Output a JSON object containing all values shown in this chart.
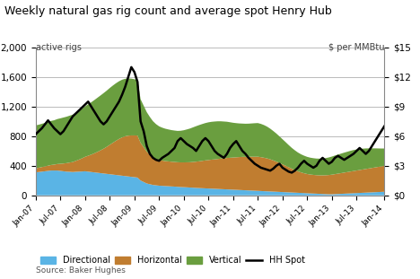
{
  "title": "Weekly natural gas rig count and average spot Henry Hub",
  "ylabel_left": "active rigs",
  "ylabel_right": "$ per MMBtu",
  "ylim_left": [
    0,
    2000
  ],
  "ylim_right": [
    0,
    15
  ],
  "yticks_left": [
    0,
    400,
    800,
    1200,
    1600,
    2000
  ],
  "yticks_right_labels": [
    "$0",
    "$3",
    "$6",
    "$9",
    "$12",
    "$15"
  ],
  "yticks_right_vals": [
    0,
    3,
    6,
    9,
    12,
    15
  ],
  "colors": {
    "directional": "#5ab4e5",
    "horizontal": "#c07d30",
    "vertical": "#6a9e3f",
    "hh_spot": "#000000",
    "background": "#ffffff",
    "grid": "#b0b0b0"
  },
  "legend_labels": [
    "Directional",
    "Horizontal",
    "Vertical",
    "HH Spot"
  ],
  "source": "Source: Baker Hughes",
  "xtick_labels": [
    "Jan-07",
    "Jul-07",
    "Jan-08",
    "Jul-08",
    "Jan-09",
    "Jul-09",
    "Jan-10",
    "Jul-10",
    "Jan-11",
    "Jul-11",
    "Jan-12",
    "Jul-12",
    "Jan-13",
    "Jul-13",
    "Jan-14"
  ],
  "directional": [
    310,
    315,
    320,
    325,
    330,
    335,
    335,
    335,
    330,
    325,
    320,
    318,
    315,
    318,
    320,
    322,
    325,
    320,
    315,
    310,
    305,
    300,
    295,
    290,
    285,
    280,
    275,
    270,
    265,
    260,
    255,
    250,
    245,
    240,
    200,
    180,
    160,
    150,
    140,
    135,
    130,
    128,
    125,
    123,
    120,
    118,
    115,
    112,
    110,
    108,
    105,
    103,
    100,
    98,
    96,
    94,
    92,
    90,
    88,
    86,
    84,
    82,
    80,
    78,
    76,
    74,
    72,
    70,
    68,
    66,
    64,
    62,
    60,
    58,
    56,
    54,
    52,
    50,
    48,
    46,
    44,
    42,
    40,
    38,
    36,
    34,
    32,
    30,
    28,
    26,
    24,
    22,
    20,
    18,
    16,
    14,
    14,
    16,
    18,
    20,
    22,
    24,
    26,
    28,
    30,
    32,
    34,
    36,
    38,
    40,
    42,
    44,
    46,
    48,
    50,
    52
  ],
  "horizontal": [
    55,
    58,
    62,
    66,
    70,
    75,
    80,
    88,
    96,
    105,
    115,
    125,
    135,
    148,
    162,
    178,
    195,
    215,
    235,
    258,
    282,
    308,
    335,
    365,
    398,
    430,
    462,
    492,
    518,
    538,
    552,
    560,
    565,
    568,
    510,
    470,
    430,
    400,
    375,
    358,
    348,
    342,
    338,
    336,
    334,
    333,
    332,
    333,
    335,
    338,
    342,
    348,
    355,
    362,
    370,
    378,
    385,
    392,
    398,
    405,
    412,
    418,
    425,
    430,
    435,
    440,
    445,
    450,
    452,
    455,
    458,
    460,
    462,
    458,
    452,
    445,
    435,
    422,
    408,
    392,
    375,
    358,
    340,
    322,
    305,
    290,
    278,
    268,
    260,
    255,
    252,
    250,
    250,
    252,
    255,
    260,
    265,
    270,
    275,
    280,
    285,
    290,
    295,
    300,
    305,
    310,
    315,
    320,
    325,
    330,
    335,
    340,
    345,
    350,
    355,
    360
  ],
  "vertical": [
    580,
    582,
    585,
    588,
    592,
    596,
    600,
    608,
    615,
    622,
    628,
    634,
    640,
    650,
    660,
    670,
    682,
    695,
    708,
    720,
    732,
    742,
    752,
    760,
    768,
    774,
    778,
    780,
    780,
    778,
    774,
    768,
    760,
    750,
    590,
    562,
    535,
    510,
    488,
    470,
    455,
    445,
    438,
    432,
    428,
    425,
    424,
    428,
    435,
    445,
    456,
    468,
    480,
    490,
    498,
    505,
    510,
    512,
    512,
    510,
    505,
    498,
    490,
    480,
    470,
    462,
    455,
    450,
    448,
    448,
    450,
    453,
    455,
    450,
    442,
    430,
    415,
    398,
    380,
    360,
    340,
    320,
    300,
    282,
    268,
    255,
    245,
    238,
    232,
    228,
    226,
    225,
    226,
    228,
    232,
    238,
    245,
    252,
    258,
    264,
    270,
    275,
    280,
    284,
    285,
    284,
    282,
    278,
    272,
    265,
    258,
    250,
    242,
    235,
    228,
    222
  ],
  "hh_spot": [
    6.2,
    6.5,
    6.8,
    7.2,
    7.6,
    7.2,
    6.8,
    6.5,
    6.2,
    6.5,
    7.0,
    7.5,
    8.0,
    8.3,
    8.6,
    8.9,
    9.2,
    9.5,
    9.0,
    8.5,
    8.0,
    7.5,
    7.2,
    7.5,
    8.0,
    8.5,
    9.0,
    9.5,
    10.2,
    11.0,
    12.0,
    13.0,
    12.5,
    11.5,
    7.5,
    6.5,
    5.0,
    4.2,
    3.8,
    3.6,
    3.5,
    3.8,
    4.0,
    4.2,
    4.5,
    4.8,
    5.5,
    5.8,
    5.5,
    5.2,
    5.0,
    4.8,
    4.5,
    5.0,
    5.5,
    5.8,
    5.5,
    5.0,
    4.5,
    4.2,
    4.0,
    3.8,
    4.2,
    4.8,
    5.2,
    5.5,
    5.0,
    4.5,
    4.2,
    3.8,
    3.5,
    3.2,
    3.0,
    2.8,
    2.7,
    2.6,
    2.5,
    2.7,
    3.0,
    3.2,
    2.8,
    2.6,
    2.4,
    2.3,
    2.5,
    2.8,
    3.2,
    3.5,
    3.2,
    3.0,
    2.8,
    3.0,
    3.5,
    3.8,
    3.5,
    3.2,
    3.4,
    3.8,
    4.0,
    3.8,
    3.6,
    3.8,
    4.0,
    4.2,
    4.5,
    4.8,
    4.5,
    4.2,
    4.5,
    5.0,
    5.5,
    6.0,
    6.5,
    7.0
  ]
}
